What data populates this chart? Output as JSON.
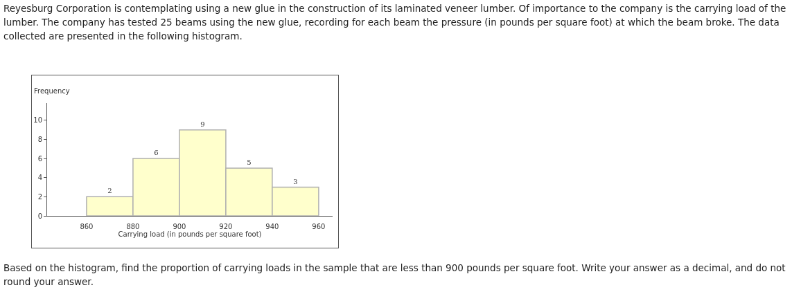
{
  "chart_data": {
    "type": "histogram",
    "annotations": [
      "Reyesburg Corporation is contemplating using a new glue in the construction of its laminated veneer lumber. Of importance to the company is the carrying load of the lumber. The company has tested 25 beams using the new glue, recording for each beam the pressure (in pounds per square foot) at which the beam broke. The data collected are presented in the following histogram.",
      "Based on the histogram, find the proportion of carrying loads in the sample that are less than 900 pounds per square foot. Write your answer as a decimal, and do not round your answer."
    ],
    "xlabel": "Carrying load (in pounds per square foot)",
    "ylabel": "Frequency",
    "bins": [
      860,
      880,
      900,
      920,
      940,
      960
    ],
    "values": [
      2,
      6,
      9,
      5,
      3
    ],
    "color": "#ffffcc",
    "xlim": [
      843,
      966
    ],
    "xticks": [
      860,
      880,
      900,
      920,
      940,
      960
    ],
    "ylim": [
      0,
      11.8
    ],
    "yticks": [
      0,
      2,
      4,
      6,
      8,
      10
    ],
    "data_labels": true,
    "grid": false
  }
}
